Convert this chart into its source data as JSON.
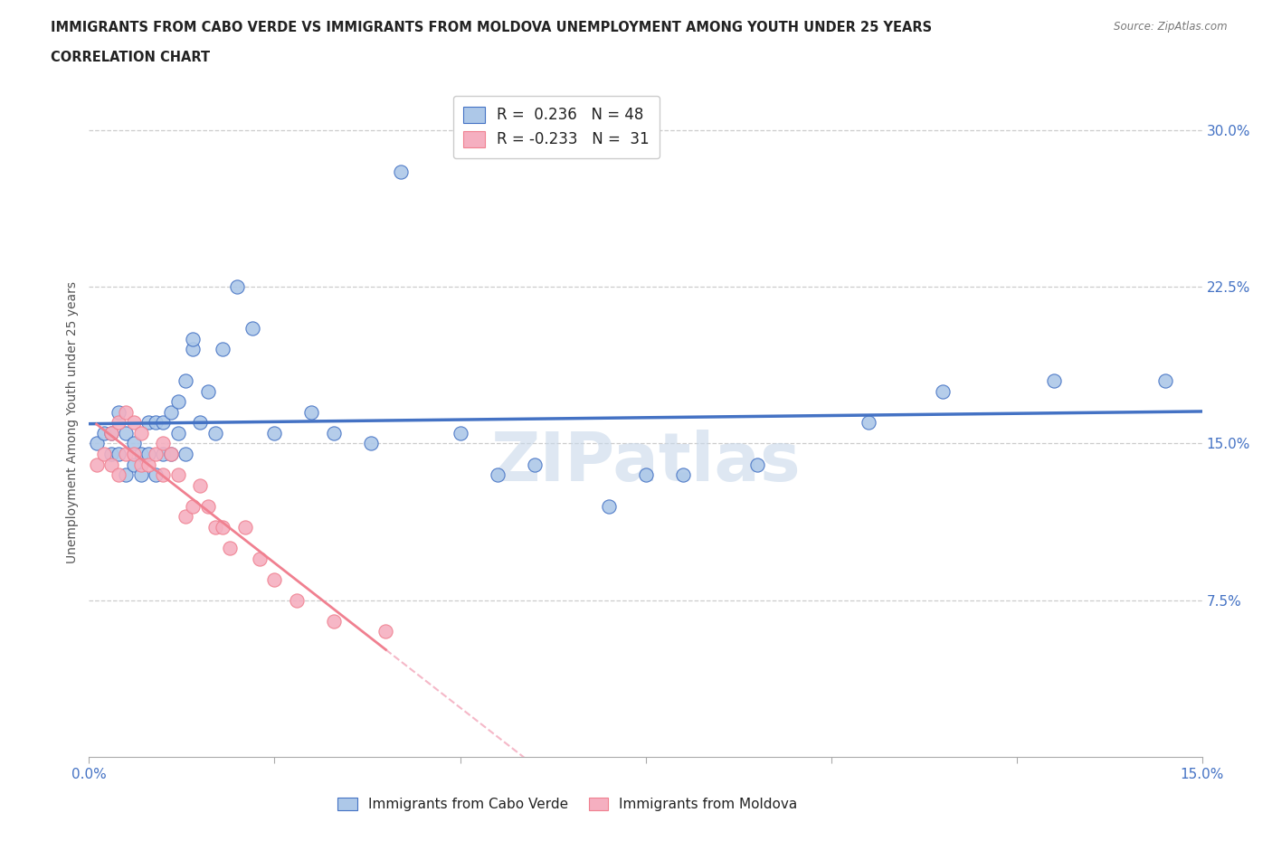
{
  "title_line1": "IMMIGRANTS FROM CABO VERDE VS IMMIGRANTS FROM MOLDOVA UNEMPLOYMENT AMONG YOUTH UNDER 25 YEARS",
  "title_line2": "CORRELATION CHART",
  "source_text": "Source: ZipAtlas.com",
  "ylabel": "Unemployment Among Youth under 25 years",
  "x_min": 0.0,
  "x_max": 0.15,
  "y_min": 0.0,
  "y_max": 0.32,
  "y_ticks_right": [
    0.075,
    0.15,
    0.225,
    0.3
  ],
  "y_tick_labels_right": [
    "7.5%",
    "15.0%",
    "22.5%",
    "30.0%"
  ],
  "cabo_verde_R": 0.236,
  "cabo_verde_N": 48,
  "moldova_R": -0.233,
  "moldova_N": 31,
  "cabo_verde_color": "#adc8e8",
  "moldova_color": "#f5afc0",
  "cabo_verde_line_color": "#4472c4",
  "moldova_line_color": "#f08090",
  "moldova_dash_color": "#f5b8c8",
  "watermark": "ZIPatlas",
  "watermark_color": "#c8d8ea",
  "cabo_verde_x": [
    0.001,
    0.002,
    0.003,
    0.003,
    0.004,
    0.004,
    0.005,
    0.005,
    0.006,
    0.006,
    0.007,
    0.007,
    0.008,
    0.008,
    0.009,
    0.009,
    0.01,
    0.01,
    0.011,
    0.011,
    0.012,
    0.012,
    0.013,
    0.013,
    0.014,
    0.014,
    0.015,
    0.016,
    0.017,
    0.018,
    0.02,
    0.022,
    0.025,
    0.03,
    0.033,
    0.038,
    0.042,
    0.05,
    0.055,
    0.06,
    0.07,
    0.075,
    0.08,
    0.09,
    0.105,
    0.115,
    0.13,
    0.145
  ],
  "cabo_verde_y": [
    0.15,
    0.155,
    0.145,
    0.155,
    0.145,
    0.165,
    0.135,
    0.155,
    0.14,
    0.15,
    0.135,
    0.145,
    0.145,
    0.16,
    0.135,
    0.16,
    0.145,
    0.16,
    0.145,
    0.165,
    0.155,
    0.17,
    0.145,
    0.18,
    0.195,
    0.2,
    0.16,
    0.175,
    0.155,
    0.195,
    0.225,
    0.205,
    0.155,
    0.165,
    0.155,
    0.15,
    0.28,
    0.155,
    0.135,
    0.14,
    0.12,
    0.135,
    0.135,
    0.14,
    0.16,
    0.175,
    0.18,
    0.18
  ],
  "moldova_x": [
    0.001,
    0.002,
    0.003,
    0.003,
    0.004,
    0.004,
    0.005,
    0.005,
    0.006,
    0.006,
    0.007,
    0.007,
    0.008,
    0.009,
    0.01,
    0.01,
    0.011,
    0.012,
    0.013,
    0.014,
    0.015,
    0.016,
    0.017,
    0.018,
    0.019,
    0.021,
    0.023,
    0.025,
    0.028,
    0.033,
    0.04
  ],
  "moldova_y": [
    0.14,
    0.145,
    0.14,
    0.155,
    0.135,
    0.16,
    0.145,
    0.165,
    0.145,
    0.16,
    0.14,
    0.155,
    0.14,
    0.145,
    0.135,
    0.15,
    0.145,
    0.135,
    0.115,
    0.12,
    0.13,
    0.12,
    0.11,
    0.11,
    0.1,
    0.11,
    0.095,
    0.085,
    0.075,
    0.065,
    0.06
  ]
}
